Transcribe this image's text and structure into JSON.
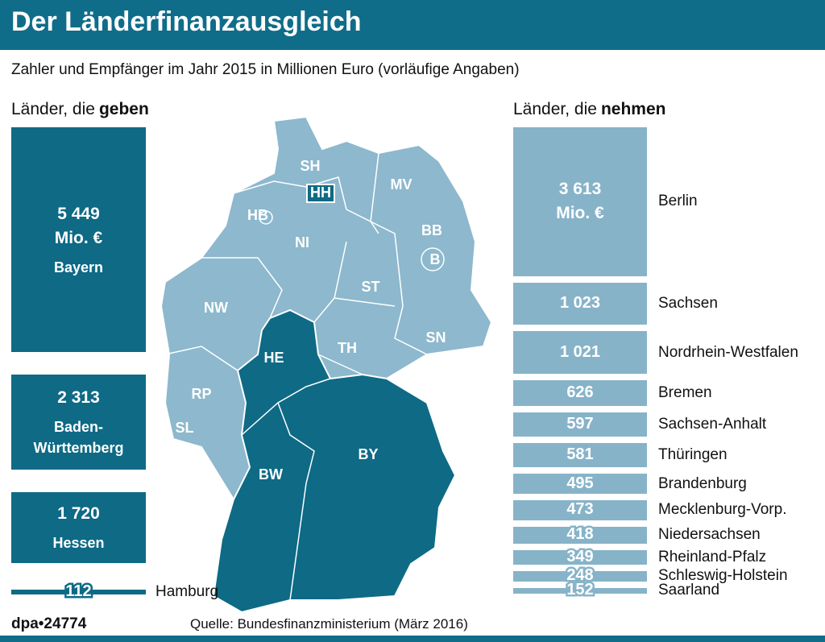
{
  "header": {
    "title": "Der Länderfinanzausgleich",
    "subtitle": "Zahler und Empfänger im Jahr 2015 in Millionen Euro (vorläufige Angaben)"
  },
  "chart_data": [
    {
      "type": "bar",
      "title": "Länder, die",
      "title_bold": "geben",
      "unit": "Mio. €",
      "color": "#0e6a85",
      "categories": [
        "Bayern",
        "Baden-Württemberg",
        "Hessen",
        "Hamburg"
      ],
      "values": [
        5449,
        2313,
        1720,
        112
      ],
      "value_labels": [
        "5 449",
        "2 313",
        "1 720",
        "112"
      ]
    },
    {
      "type": "bar",
      "title": "Länder, die",
      "title_bold": "nehmen",
      "unit": "Mio. €",
      "color": "#87b3c9",
      "categories": [
        "Berlin",
        "Sachsen",
        "Nordrhein-Westfalen",
        "Bremen",
        "Sachsen-Anhalt",
        "Thüringen",
        "Brandenburg",
        "Mecklenburg-Vorp.",
        "Niedersachsen",
        "Rheinland-Pfalz",
        "Schleswig-Holstein",
        "Saarland"
      ],
      "values": [
        3613,
        1023,
        1021,
        626,
        597,
        581,
        495,
        473,
        418,
        349,
        248,
        152
      ],
      "value_labels": [
        "3 613",
        "1 023",
        "1 021",
        "626",
        "597",
        "581",
        "495",
        "473",
        "418",
        "349",
        "248",
        "152"
      ]
    }
  ],
  "map": {
    "labels": [
      "SH",
      "HH",
      "MV",
      "HB",
      "NI",
      "BB",
      "B",
      "NW",
      "ST",
      "SN",
      "HE",
      "TH",
      "RP",
      "SL",
      "BY",
      "BW"
    ]
  },
  "footer": {
    "brand": "dpa•24774",
    "source": "Quelle: Bundesfinanzministerium (März 2016)"
  }
}
